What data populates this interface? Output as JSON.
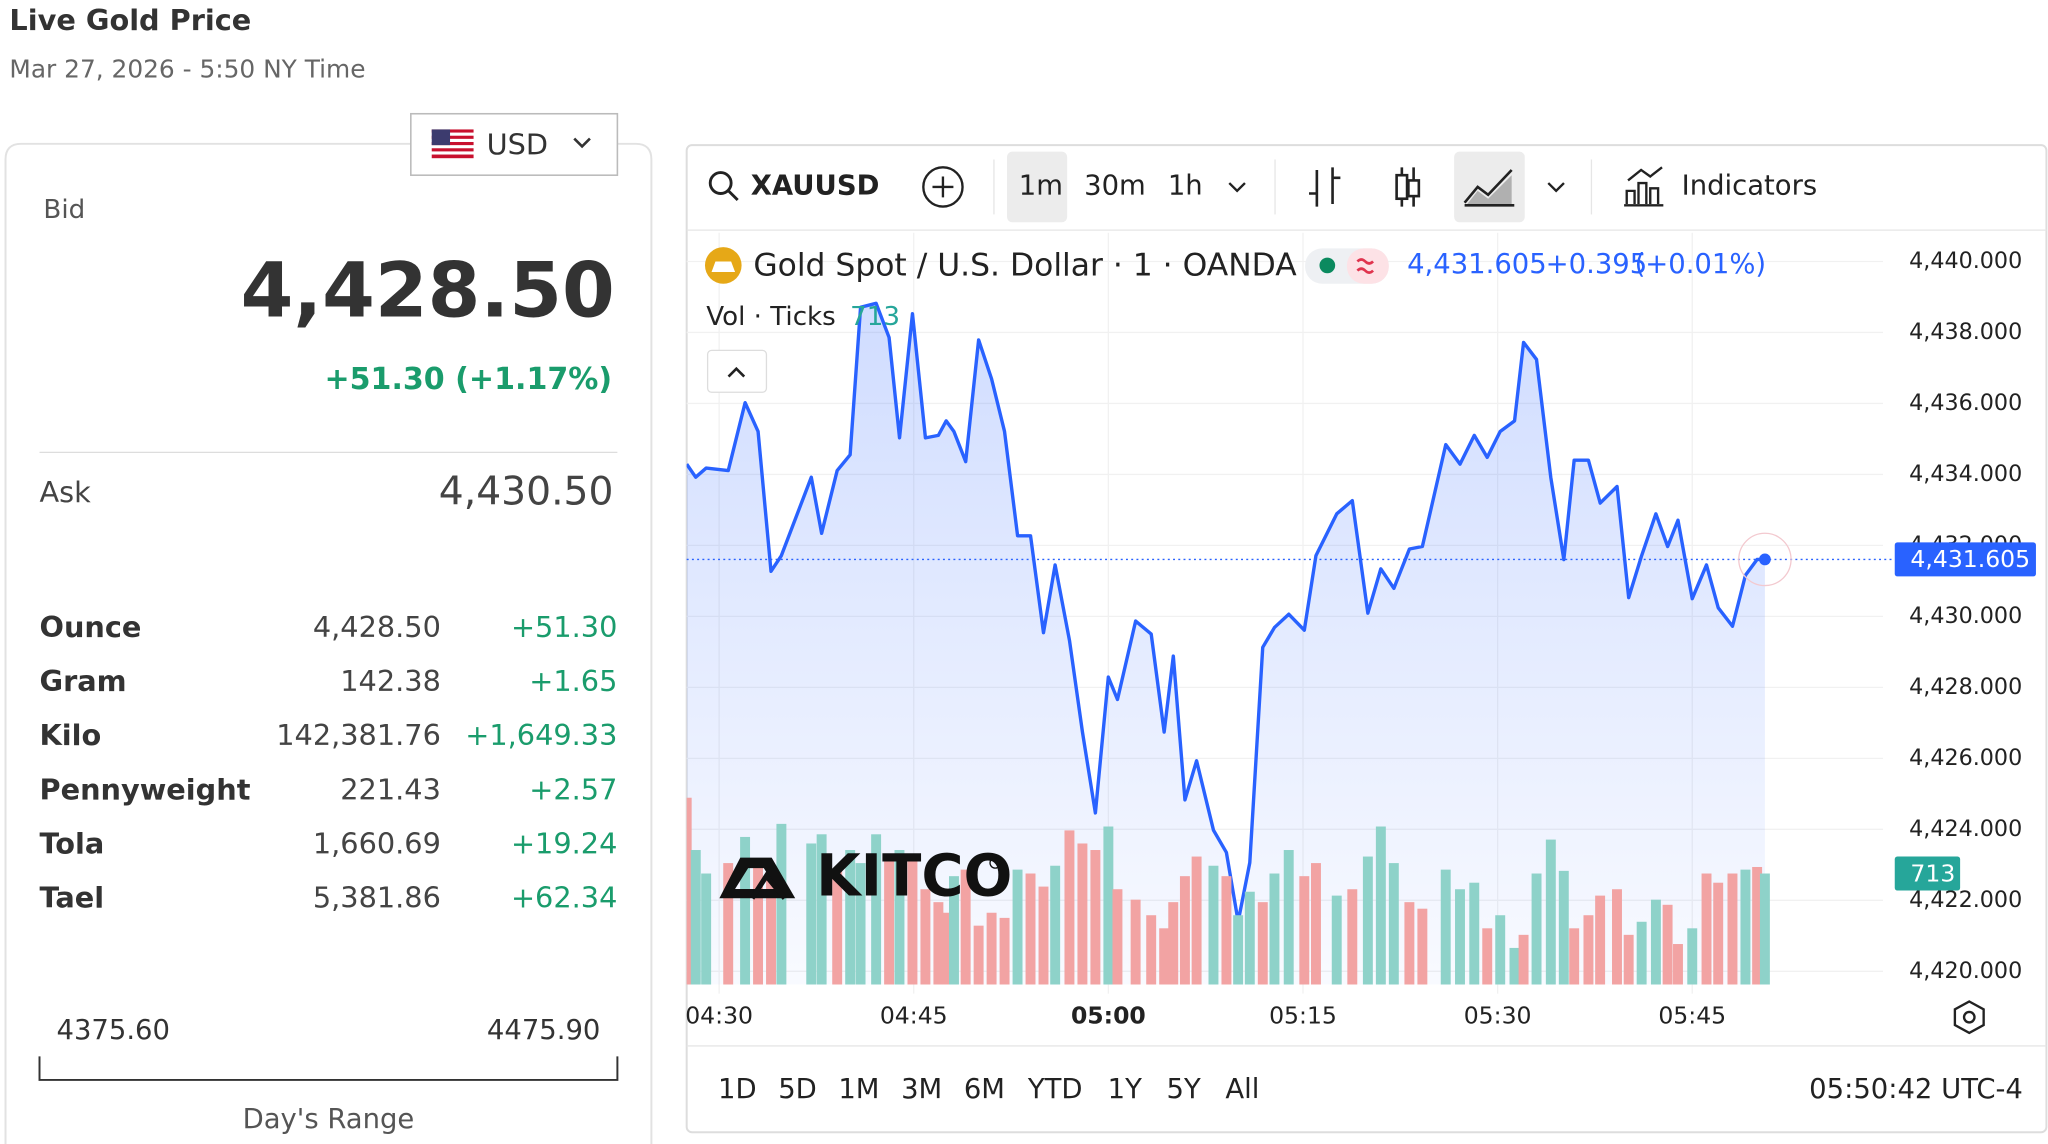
{
  "header": {
    "title": "Live Gold Price",
    "subtitle": "Mar 27, 2026 - 5:50 NY Time"
  },
  "quote": {
    "currency": "USD",
    "bid_label": "Bid",
    "bid": "4,428.50",
    "change": "+51.30 (+1.17%)",
    "ask_label": "Ask",
    "ask": "4,430.50",
    "rows": [
      [
        "Ounce",
        "4,428.50",
        "+51.30"
      ],
      [
        "Gram",
        "142.38",
        "+1.65"
      ],
      [
        "Kilo",
        "142,381.76",
        "+1,649.33"
      ],
      [
        "Pennyweight",
        "221.43",
        "+2.57"
      ],
      [
        "Tola",
        "1,660.69",
        "+19.24"
      ],
      [
        "Tael",
        "5,381.86",
        "+62.34"
      ]
    ],
    "range_low": "4375.60",
    "range_high": "4475.90",
    "range_label": "Day's Range"
  },
  "toolbar": {
    "symbol": "XAUUSD",
    "intervals": [
      "1m",
      "30m",
      "1h"
    ],
    "indicators": "Indicators"
  },
  "chart_data": {
    "type": "line",
    "title": "Gold Spot / U.S. Dollar · 1 · OANDA",
    "x": [
      267.5,
      268.2,
      269.0,
      270.7,
      272.0,
      273.0,
      274.0,
      274.8,
      277.1,
      277.9,
      279.1,
      280.1,
      280.9,
      282.1,
      283.1,
      283.9,
      284.9,
      285.9,
      286.9,
      287.5,
      288.1,
      289.0,
      290.0,
      291.0,
      292.0,
      293.0,
      294.0,
      295.0,
      295.9,
      297.0,
      298.0,
      299.0,
      300.0,
      300.7,
      302.1,
      303.3,
      304.3,
      305.0,
      305.9,
      306.8,
      308.1,
      309.1,
      310.0,
      310.9,
      311.9,
      312.8,
      313.9,
      315.1,
      316.0,
      317.6,
      318.8,
      320.0,
      321.0,
      322.0,
      323.2,
      324.2,
      326.0,
      327.1,
      328.2,
      329.2,
      330.2,
      331.3,
      332.0,
      333.0,
      334.1,
      335.1,
      335.9,
      337.0,
      337.9,
      339.2,
      340.1,
      341.1,
      342.2,
      343.1,
      343.9,
      345.0,
      346.1,
      347.0,
      348.1,
      349.1,
      350.0,
      350.6
    ],
    "xlim": [
      267.5,
      359.7
    ],
    "xticks": [
      {
        "value": 270,
        "label": "04:30"
      },
      {
        "value": 285,
        "label": "04:45"
      },
      {
        "value": 300,
        "label": "05:00"
      },
      {
        "value": 315,
        "label": "05:15"
      },
      {
        "value": 330,
        "label": "05:30"
      },
      {
        "value": 345,
        "label": "05:45"
      }
    ],
    "ylim": [
      4419.37,
      4440.81
    ],
    "yticks": [
      {
        "value": 4420,
        "label": "4,420.000"
      },
      {
        "value": 4422,
        "label": "4,422.000"
      },
      {
        "value": 4424,
        "label": "4,424.000"
      },
      {
        "value": 4426,
        "label": "4,426.000"
      },
      {
        "value": 4428,
        "label": "4,428.000"
      },
      {
        "value": 4430,
        "label": "4,430.000"
      },
      {
        "value": 4432,
        "label": "4,432.000"
      },
      {
        "value": 4434,
        "label": "4,434.000"
      },
      {
        "value": 4436,
        "label": "4,436.000"
      },
      {
        "value": 4438,
        "label": "4,438.000"
      },
      {
        "value": 4440,
        "label": "4,440.000"
      }
    ],
    "y2lim": [
      0,
      1470
    ],
    "grid": true,
    "series": [
      {
        "color": "#2962ff",
        "change": "+0.395",
        "change_pct": "(+0.01%)",
        "last_value_label": "4,431.605",
        "values": [
          4434.29,
          4433.92,
          4434.18,
          4434.11,
          4436.02,
          4435.21,
          4431.27,
          4431.71,
          4433.92,
          4432.34,
          4434.11,
          4434.55,
          4438.71,
          4438.82,
          4437.86,
          4435.03,
          4438.53,
          4435.03,
          4435.1,
          4435.51,
          4435.21,
          4434.36,
          4437.79,
          4436.69,
          4435.21,
          4432.27,
          4432.27,
          4429.54,
          4431.45,
          4429.32,
          4426.74,
          4424.46,
          4428.29,
          4427.66,
          4429.87,
          4429.5,
          4426.74,
          4428.88,
          4424.83,
          4425.93,
          4423.98,
          4423.35,
          4421.4,
          4423.06,
          4429.13,
          4429.69,
          4430.06,
          4429.61,
          4431.71,
          4432.89,
          4433.26,
          4430.09,
          4431.34,
          4430.79,
          4431.9,
          4431.97,
          4434.84,
          4434.29,
          4435.1,
          4434.48,
          4435.21,
          4435.51,
          4437.72,
          4437.24,
          4433.92,
          4431.6,
          4434.4,
          4434.4,
          4433.19,
          4433.66,
          4430.53,
          4431.71,
          4432.89,
          4431.97,
          4432.71,
          4430.5,
          4431.45,
          4430.24,
          4429.72,
          4431.16,
          4431.605,
          4431.605
        ]
      },
      {
        "name": "Vol · Ticks",
        "type": "bar",
        "axis": "y2",
        "values": [
          1200,
          864,
          713,
          780,
          948,
          780,
          738,
          1032,
          906,
          965,
          738,
          864,
          780,
          965,
          822,
          864,
          822,
          612,
          529,
          461,
          696,
          738,
          378,
          461,
          428,
          738,
          713,
          629,
          763,
          990,
          906,
          864,
          1015,
          612,
          545,
          445,
          361,
          529,
          696,
          822,
          763,
          696,
          445,
          596,
          529,
          713,
          864,
          696,
          780,
          571,
          612,
          822,
          1015,
          780,
          529,
          487,
          738,
          612,
          654,
          361,
          445,
          235,
          319,
          713,
          931,
          730,
          361,
          445,
          571,
          612,
          319,
          403,
          545,
          512,
          260,
          361,
          713,
          654,
          713,
          738,
          755,
          713
        ],
        "colors": [
          "#f2a3a3",
          "#8ed2c9",
          "#8ed2c9",
          "#f2a3a3",
          "#8ed2c9",
          "#f2a3a3",
          "#f2a3a3",
          "#8ed2c9",
          "#8ed2c9",
          "#8ed2c9",
          "#f2a3a3",
          "#8ed2c9",
          "#8ed2c9",
          "#8ed2c9",
          "#f2a3a3",
          "#8ed2c9",
          "#f2a3a3",
          "#f2a3a3",
          "#f2a3a3",
          "#f2a3a3",
          "#8ed2c9",
          "#f2a3a3",
          "#f2a3a3",
          "#f2a3a3",
          "#f2a3a3",
          "#8ed2c9",
          "#f2a3a3",
          "#f2a3a3",
          "#8ed2c9",
          "#f2a3a3",
          "#f2a3a3",
          "#f2a3a3",
          "#8ed2c9",
          "#f2a3a3",
          "#f2a3a3",
          "#f2a3a3",
          "#f2a3a3",
          "#f2a3a3",
          "#f2a3a3",
          "#f2a3a3",
          "#8ed2c9",
          "#f2a3a3",
          "#8ed2c9",
          "#8ed2c9",
          "#f2a3a3",
          "#8ed2c9",
          "#8ed2c9",
          "#f2a3a3",
          "#f2a3a3",
          "#8ed2c9",
          "#f2a3a3",
          "#8ed2c9",
          "#8ed2c9",
          "#8ed2c9",
          "#f2a3a3",
          "#f2a3a3",
          "#8ed2c9",
          "#8ed2c9",
          "#8ed2c9",
          "#f2a3a3",
          "#8ed2c9",
          "#8ed2c9",
          "#f2a3a3",
          "#8ed2c9",
          "#8ed2c9",
          "#8ed2c9",
          "#f2a3a3",
          "#f2a3a3",
          "#f2a3a3",
          "#f2a3a3",
          "#f2a3a3",
          "#8ed2c9",
          "#8ed2c9",
          "#f2a3a3",
          "#f2a3a3",
          "#8ed2c9",
          "#f2a3a3",
          "#f2a3a3",
          "#f2a3a3",
          "#8ed2c9",
          "#f2a3a3",
          "#8ed2c9"
        ]
      }
    ]
  },
  "logo": "KITCO",
  "footer": {
    "ranges": [
      "1D",
      "5D",
      "1M",
      "3M",
      "6M",
      "YTD",
      "1Y",
      "5Y",
      "All"
    ],
    "clock": "05:50:42 UTC-4"
  }
}
